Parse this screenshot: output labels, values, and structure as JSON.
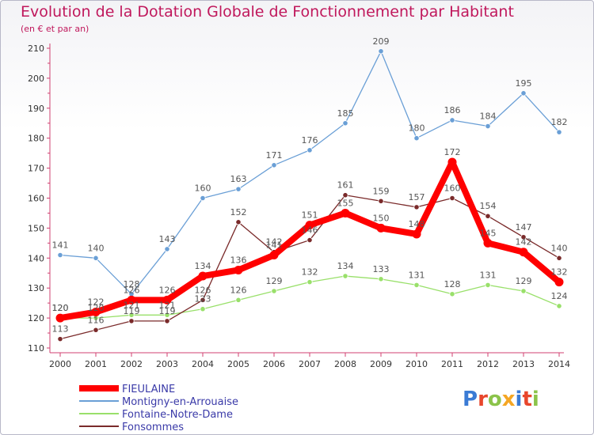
{
  "chart_data": {
    "type": "line",
    "title": "Evolution de la Dotation Globale de Fonctionnement par Habitant",
    "subtitle": "(en € et par an)",
    "x": [
      "2000",
      "2001",
      "2002",
      "2003",
      "2004",
      "2005",
      "2006",
      "2007",
      "2008",
      "2009",
      "2010",
      "2011",
      "2012",
      "2013",
      "2014"
    ],
    "ylim": [
      110,
      210
    ],
    "yticks": [
      110,
      120,
      130,
      140,
      150,
      160,
      170,
      180,
      190,
      200,
      210
    ],
    "grid": false,
    "legend_position": "bottom-left",
    "series": [
      {
        "name": "FIEULAINE",
        "color": "#ff0000",
        "values": [
          120,
          122,
          126,
          126,
          134,
          136,
          141,
          151,
          155,
          150,
          148,
          172,
          145,
          142,
          132
        ]
      },
      {
        "name": "Montigny-en-Arrouaise",
        "color": "#6a9fd6",
        "values": [
          141,
          140,
          128,
          143,
          160,
          163,
          171,
          176,
          185,
          209,
          180,
          186,
          184,
          195,
          182
        ]
      },
      {
        "name": "Fontaine-Notre-Dame",
        "color": "#99e06a",
        "values": [
          120,
          120,
          121,
          121,
          123,
          126,
          129,
          132,
          134,
          133,
          131,
          128,
          131,
          129,
          124
        ]
      },
      {
        "name": "Fonsommes",
        "color": "#7a2a2a",
        "values": [
          113,
          116,
          119,
          119,
          126,
          152,
          142,
          146,
          161,
          159,
          157,
          160,
          154,
          147,
          140
        ]
      }
    ]
  },
  "logo": {
    "text": "Proxiti"
  }
}
